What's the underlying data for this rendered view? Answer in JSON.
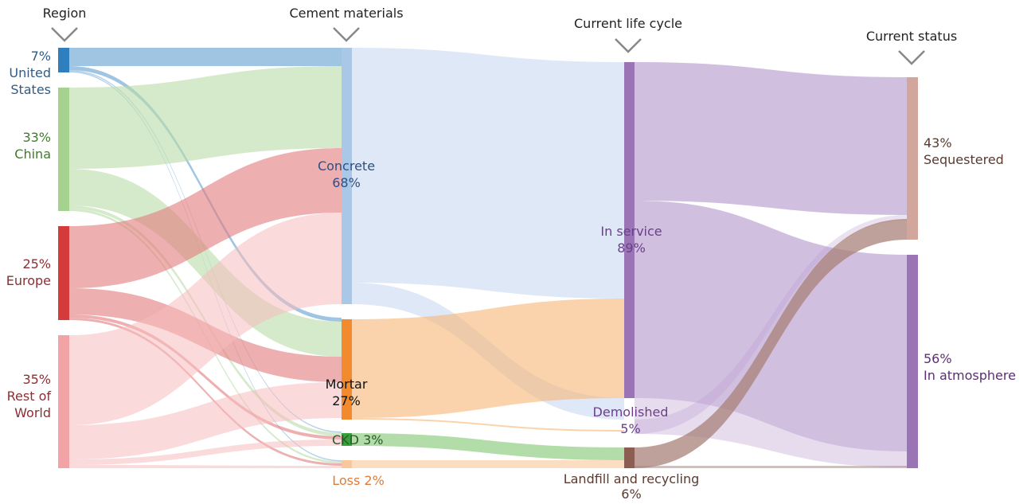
{
  "headers": {
    "region": "Region",
    "materials": "Cement materials",
    "lifecycle": "Current life cycle",
    "status": "Current status"
  },
  "nodes": {
    "us": {
      "pct": "7%",
      "name_line1": "United",
      "name_line2": "States",
      "color": "#2f7fbf"
    },
    "china": {
      "pct": "33%",
      "name": "China",
      "color": "#a6d28f"
    },
    "europe": {
      "pct": "25%",
      "name": "Europe",
      "color": "#d63b3b"
    },
    "rest": {
      "pct": "35%",
      "name_line1": "Rest of",
      "name_line2": "World",
      "color": "#f2a3a6"
    },
    "concrete": {
      "name": "Concrete",
      "pct": "68%",
      "color": "#a9c8e8"
    },
    "mortar": {
      "name": "Mortar",
      "pct": "27%",
      "color": "#f28a2e"
    },
    "ckd": {
      "name": "CKD",
      "pct": "3%",
      "color": "#33a33a"
    },
    "loss": {
      "label": "Loss 2%",
      "color": "#f9c89a"
    },
    "inservice": {
      "name": "In service",
      "pct": "89%",
      "color": "#9b74b5"
    },
    "demolished": {
      "name": "Demolished",
      "pct": "5%",
      "color": "#9b74b5"
    },
    "landfill": {
      "name": "Landfill and recycling",
      "pct": "6%",
      "color": "#8c5e52"
    },
    "sequestered": {
      "pct": "43%",
      "name": "Sequestered",
      "color": "#d2a59d"
    },
    "atmosphere": {
      "pct": "56%",
      "name": "In atmosphere",
      "color": "#9b74b5"
    }
  },
  "colors": {
    "us_link": "#7fb2d9",
    "china_link": "#b9dca6",
    "europe_link": "#e27a7c",
    "rest_link": "#f6bcbe",
    "concrete_link": "#c9d8f2",
    "mortar_link": "#f7b674",
    "ckd_link": "#7ec46e",
    "inservice_link": "#b99ccf",
    "landfill_link": "#a88278"
  }
}
